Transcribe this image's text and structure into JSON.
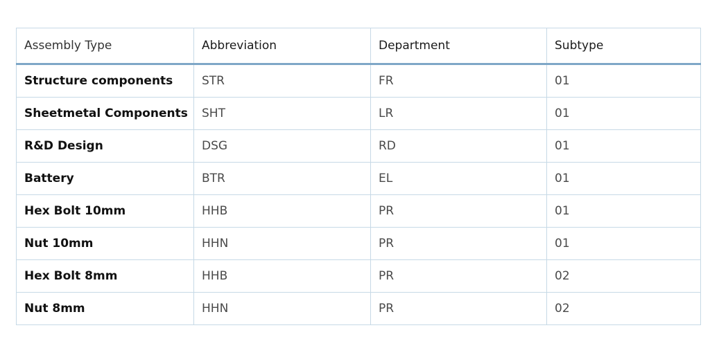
{
  "table": {
    "headers": [
      "Assembly Type",
      "Abbreviation",
      "Department",
      "Subtype"
    ],
    "rows": [
      {
        "assembly_type": "Structure components",
        "abbreviation": "STR",
        "department": "FR",
        "subtype": "01"
      },
      {
        "assembly_type": "Sheetmetal Components",
        "abbreviation": "SHT",
        "department": "LR",
        "subtype": "01"
      },
      {
        "assembly_type": "R&D Design",
        "abbreviation": "DSG",
        "department": "RD",
        "subtype": "01"
      },
      {
        "assembly_type": "Battery",
        "abbreviation": "BTR",
        "department": "EL",
        "subtype": "01"
      },
      {
        "assembly_type": "Hex Bolt 10mm",
        "abbreviation": "HHB",
        "department": "PR",
        "subtype": "01"
      },
      {
        "assembly_type": "Nut 10mm",
        "abbreviation": "HHN",
        "department": "PR",
        "subtype": "01"
      },
      {
        "assembly_type": "Hex Bolt 8mm",
        "abbreviation": "HHB",
        "department": "PR",
        "subtype": "02"
      },
      {
        "assembly_type": "Nut 8mm",
        "abbreviation": "HHN",
        "department": "PR",
        "subtype": "02"
      }
    ]
  },
  "colors": {
    "border": "#c6d9e6",
    "header_rule": "#7ea7c7"
  }
}
